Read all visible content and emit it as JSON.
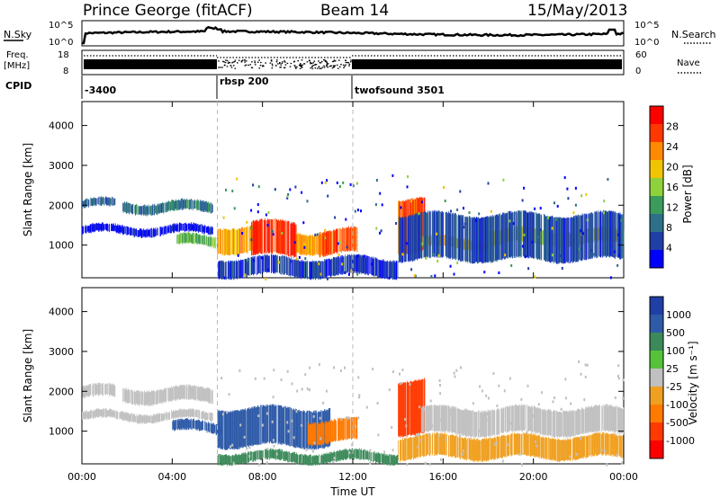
{
  "header": {
    "title": "Prince George (fitACF)",
    "beam": "Beam 14",
    "date": "15/May/2013"
  },
  "noise_panel": {
    "left_label": "N.Sky",
    "right_label": "N.Search",
    "tick_top": "10^5",
    "tick_bottom": "10^0"
  },
  "freq_panel": {
    "left_label_line1": "Freq.",
    "left_label_line2": "[MHz]",
    "left_ticks": [
      "18",
      "8"
    ],
    "right_ticks": [
      "60",
      "0"
    ],
    "right_label": "Nave"
  },
  "cpid": {
    "label": "CPID",
    "segments": [
      {
        "name": "-3400",
        "start_hour": 0
      },
      {
        "name": "rbsp 200",
        "start_hour": 6
      },
      {
        "name": "twofsound 3501",
        "start_hour": 12
      }
    ]
  },
  "colors": {
    "power_scale": [
      "#0000ff",
      "#1f3fa6",
      "#2e6f8a",
      "#3b9b5a",
      "#8fd13a",
      "#f0c400",
      "#ff8a00",
      "#ff3800",
      "#ff0000"
    ],
    "velocity_scale": [
      "#1f3fa6",
      "#2e5aa8",
      "#3c8a5a",
      "#55c23a",
      "#c0c0c0",
      "#f0a020",
      "#ff7a00",
      "#ff3a00",
      "#ff0000"
    ]
  },
  "chart_data": [
    {
      "type": "heatmap",
      "name": "power",
      "ylabel": "Slant Range [km]",
      "ylim": [
        180,
        4600
      ],
      "yticks": [
        "1000",
        "2000",
        "3000",
        "4000"
      ],
      "colorbar_label": "Power [dB]",
      "colorbar_ticks": [
        "4",
        "8",
        "12",
        "16",
        "20",
        "24",
        "28"
      ],
      "colorbar_range": [
        0,
        32
      ],
      "xlim_hours": [
        0,
        24
      ],
      "features": [
        {
          "t0": 0.0,
          "t1": 1.5,
          "r0": 1900,
          "r1": 2150,
          "level": 8
        },
        {
          "t0": 1.8,
          "t1": 5.8,
          "r0": 1800,
          "r1": 2100,
          "level": 9
        },
        {
          "t0": 0.0,
          "t1": 5.8,
          "r0": 1250,
          "r1": 1500,
          "level": 2
        },
        {
          "t0": 4.2,
          "t1": 6.0,
          "r0": 950,
          "r1": 1250,
          "level": 14
        },
        {
          "t0": 6.0,
          "t1": 8.0,
          "r0": 800,
          "r1": 1500,
          "level": 22
        },
        {
          "t0": 7.5,
          "t1": 9.5,
          "r0": 700,
          "r1": 1600,
          "level": 28
        },
        {
          "t0": 9.5,
          "t1": 11.0,
          "r0": 800,
          "r1": 1350,
          "level": 22
        },
        {
          "t0": 10.5,
          "t1": 12.2,
          "r0": 750,
          "r1": 1400,
          "level": 26
        },
        {
          "t0": 14.0,
          "t1": 15.2,
          "r0": 800,
          "r1": 2200,
          "level": 26
        },
        {
          "t0": 15.0,
          "t1": 18.0,
          "r0": 900,
          "r1": 1200,
          "level": 20
        },
        {
          "t0": 18.0,
          "t1": 24.0,
          "r0": 1000,
          "r1": 1400,
          "level": 18
        },
        {
          "t0": 14.0,
          "t1": 24.0,
          "r0": 600,
          "r1": 1800,
          "level": 6
        },
        {
          "t0": 6.0,
          "t1": 14.0,
          "r0": 200,
          "r1": 700,
          "level": 5
        }
      ]
    },
    {
      "type": "heatmap",
      "name": "velocity",
      "ylabel": "Slant Range [km]",
      "ylim": [
        180,
        4600
      ],
      "yticks": [
        "1000",
        "2000",
        "3000",
        "4000"
      ],
      "colorbar_label": "Velocity [m s⁻¹]",
      "colorbar_ticks": [
        "1000",
        "500",
        "100",
        "25",
        "-25",
        "-100",
        "-500",
        "-1000"
      ],
      "xlabel": "Time UT",
      "xticks": [
        "00:00",
        "04:00",
        "08:00",
        "12:00",
        "16:00",
        "20:00",
        "00:00"
      ],
      "xlim_hours": [
        0,
        24
      ],
      "features": [
        {
          "t0": 0.0,
          "t1": 1.5,
          "r0": 1800,
          "r1": 2150,
          "level": 0
        },
        {
          "t0": 1.8,
          "t1": 5.8,
          "r0": 1700,
          "r1": 2100,
          "level": 0
        },
        {
          "t0": 0.0,
          "t1": 5.8,
          "r0": 1250,
          "r1": 1500,
          "level": 0
        },
        {
          "t0": 4.0,
          "t1": 6.2,
          "r0": 950,
          "r1": 1250,
          "level": 120
        },
        {
          "t0": 6.0,
          "t1": 11.0,
          "r0": 600,
          "r1": 1600,
          "level": 150
        },
        {
          "t0": 10.0,
          "t1": 12.2,
          "r0": 700,
          "r1": 1300,
          "level": -150
        },
        {
          "t0": 14.0,
          "t1": 15.2,
          "r0": 900,
          "r1": 2300,
          "level": -200
        },
        {
          "t0": 15.0,
          "t1": 24.0,
          "r0": 900,
          "r1": 1600,
          "level": 0
        },
        {
          "t0": 14.0,
          "t1": 24.0,
          "r0": 300,
          "r1": 900,
          "level": -60
        },
        {
          "t0": 6.0,
          "t1": 14.0,
          "r0": 200,
          "r1": 500,
          "level": 60
        }
      ]
    }
  ]
}
